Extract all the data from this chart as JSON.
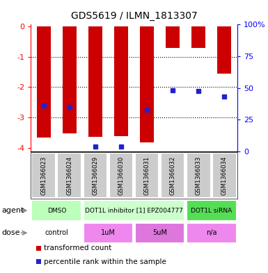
{
  "title": "GDS5619 / ILMN_1813307",
  "samples": [
    "GSM1366023",
    "GSM1366024",
    "GSM1366029",
    "GSM1366030",
    "GSM1366031",
    "GSM1366032",
    "GSM1366033",
    "GSM1366034"
  ],
  "red_values": [
    -3.65,
    -3.52,
    -3.62,
    -3.6,
    -3.82,
    -0.72,
    -0.71,
    -1.55
  ],
  "blue_values": [
    -2.6,
    -2.65,
    -3.95,
    -3.95,
    -2.75,
    -2.1,
    -2.12,
    -2.3
  ],
  "ylim_left": [
    -4.1,
    0.05
  ],
  "ylim_right": [
    0,
    100
  ],
  "left_yticks": [
    0,
    -1,
    -2,
    -3,
    -4
  ],
  "right_yticks": [
    0,
    25,
    50,
    75,
    100
  ],
  "right_yticklabels": [
    "0",
    "25",
    "50",
    "75",
    "100%"
  ],
  "grid_lines": [
    -1,
    -2,
    -3
  ],
  "bar_color": "#cc0000",
  "dot_color": "#2222cc",
  "agent_groups": [
    {
      "label": "DMSO",
      "start": 0,
      "end": 2,
      "color": "#bbffbb"
    },
    {
      "label": "DOT1L inhibitor [1] EPZ004777",
      "start": 2,
      "end": 6,
      "color": "#ccffcc"
    },
    {
      "label": "DOT1L siRNA",
      "start": 6,
      "end": 8,
      "color": "#55dd55"
    }
  ],
  "dose_groups": [
    {
      "label": "control",
      "start": 0,
      "end": 2,
      "color": "#ffffff"
    },
    {
      "label": "1uM",
      "start": 2,
      "end": 4,
      "color": "#ee88ee"
    },
    {
      "label": "5uM",
      "start": 4,
      "end": 6,
      "color": "#dd77dd"
    },
    {
      "label": "n/a",
      "start": 6,
      "end": 8,
      "color": "#ee88ee"
    }
  ],
  "bg_color": "#ffffff",
  "plot_bg_color": "#ffffff",
  "sample_bg_color": "#cccccc",
  "legend_red": "transformed count",
  "legend_blue": "percentile rank within the sample",
  "bar_width": 0.55
}
